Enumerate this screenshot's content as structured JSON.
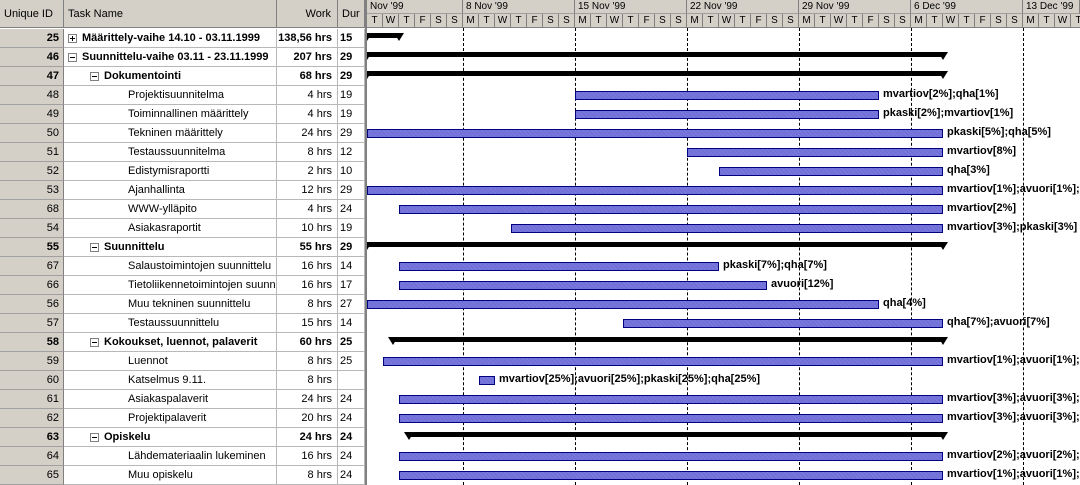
{
  "columns": {
    "id": "Unique ID",
    "name": "Task Name",
    "work": "Work",
    "duration": "Dur"
  },
  "timescale": {
    "weeks": [
      "Nov '99",
      "8 Nov '99",
      "15 Nov '99",
      "22 Nov '99",
      "29 Nov '99",
      "6 Dec '99",
      "13 Dec '99"
    ],
    "days": [
      "T",
      "W",
      "T",
      "F",
      "S",
      "S",
      "M",
      "T",
      "W",
      "T",
      "F",
      "S",
      "S",
      "M",
      "T",
      "W",
      "T",
      "F",
      "S",
      "S",
      "M",
      "T",
      "W",
      "T",
      "F",
      "S",
      "S",
      "M",
      "T",
      "W",
      "T",
      "F",
      "S",
      "S",
      "M",
      "T",
      "W",
      "T",
      "F",
      "S",
      "S",
      "M",
      "T",
      "W",
      "T"
    ]
  },
  "tasks": [
    {
      "id": "25",
      "name": "Määrittely-vaihe 14.10 - 03.11.1999",
      "work": "138,56 hrs",
      "dur": "15",
      "level": 0,
      "summary": true,
      "toggle": "+",
      "bar": {
        "kind": "summary",
        "start": 0,
        "end": 2
      },
      "label": ""
    },
    {
      "id": "46",
      "name": "Suunnittelu-vaihe 03.11 - 23.11.1999",
      "work": "207 hrs",
      "dur": "29",
      "level": 0,
      "summary": true,
      "toggle": "-",
      "bar": {
        "kind": "summary",
        "start": 0,
        "end": 36
      },
      "label": ""
    },
    {
      "id": "47",
      "name": "Dokumentointi",
      "work": "68 hrs",
      "dur": "29",
      "level": 1,
      "summary": true,
      "toggle": "-",
      "bar": {
        "kind": "summary",
        "start": 0,
        "end": 36
      },
      "label": ""
    },
    {
      "id": "48",
      "name": "Projektisuunnitelma",
      "work": "4 hrs",
      "dur": "19",
      "level": 2,
      "summary": false,
      "bar": {
        "kind": "task",
        "start": 13,
        "end": 32
      },
      "label": "mvartiov[2%];qha[1%]"
    },
    {
      "id": "49",
      "name": "Toiminnallinen määrittely",
      "work": "4 hrs",
      "dur": "19",
      "level": 2,
      "summary": false,
      "bar": {
        "kind": "task",
        "start": 13,
        "end": 32
      },
      "label": "pkaski[2%];mvartiov[1%]"
    },
    {
      "id": "50",
      "name": "Tekninen määrittely",
      "work": "24 hrs",
      "dur": "29",
      "level": 2,
      "summary": false,
      "bar": {
        "kind": "task",
        "start": 0,
        "end": 36
      },
      "label": "pkaski[5%];qha[5%]"
    },
    {
      "id": "51",
      "name": "Testaussuunnitelma",
      "work": "8 hrs",
      "dur": "12",
      "level": 2,
      "summary": false,
      "bar": {
        "kind": "task",
        "start": 20,
        "end": 36
      },
      "label": "mvartiov[8%]"
    },
    {
      "id": "52",
      "name": "Edistymisraportti",
      "work": "2 hrs",
      "dur": "10",
      "level": 2,
      "summary": false,
      "bar": {
        "kind": "task",
        "start": 22,
        "end": 36
      },
      "label": "qha[3%]"
    },
    {
      "id": "53",
      "name": "Ajanhallinta",
      "work": "12 hrs",
      "dur": "29",
      "level": 2,
      "summary": false,
      "bar": {
        "kind": "task",
        "start": 0,
        "end": 36
      },
      "label": "mvartiov[1%];avuori[1%];"
    },
    {
      "id": "68",
      "name": "WWW-ylläpito",
      "work": "4 hrs",
      "dur": "24",
      "level": 2,
      "summary": false,
      "bar": {
        "kind": "task",
        "start": 2,
        "end": 36
      },
      "label": "mvartiov[2%]"
    },
    {
      "id": "54",
      "name": "Asiakasraportit",
      "work": "10 hrs",
      "dur": "19",
      "level": 2,
      "summary": false,
      "bar": {
        "kind": "task",
        "start": 9,
        "end": 36
      },
      "label": "mvartiov[3%];pkaski[3%]"
    },
    {
      "id": "55",
      "name": "Suunnittelu",
      "work": "55 hrs",
      "dur": "29",
      "level": 1,
      "summary": true,
      "toggle": "-",
      "bar": {
        "kind": "summary",
        "start": 0,
        "end": 36
      },
      "label": ""
    },
    {
      "id": "67",
      "name": "Salaustoimintojen suunnittelu",
      "work": "16 hrs",
      "dur": "14",
      "level": 2,
      "summary": false,
      "bar": {
        "kind": "task",
        "start": 2,
        "end": 22
      },
      "label": "pkaski[7%];qha[7%]"
    },
    {
      "id": "66",
      "name": "Tietoliikennetoimintojen suunnit",
      "work": "16 hrs",
      "dur": "17",
      "level": 2,
      "summary": false,
      "bar": {
        "kind": "task",
        "start": 2,
        "end": 25
      },
      "label": "avuori[12%]"
    },
    {
      "id": "56",
      "name": "Muu tekninen suunnittelu",
      "work": "8 hrs",
      "dur": "27",
      "level": 2,
      "summary": false,
      "bar": {
        "kind": "task",
        "start": 0,
        "end": 32
      },
      "label": "qha[4%]"
    },
    {
      "id": "57",
      "name": "Testaussuunnittelu",
      "work": "15 hrs",
      "dur": "14",
      "level": 2,
      "summary": false,
      "bar": {
        "kind": "task",
        "start": 16,
        "end": 36
      },
      "label": "qha[7%];avuori[7%]"
    },
    {
      "id": "58",
      "name": "Kokoukset, luennot, palaverit",
      "work": "60 hrs",
      "dur": "25",
      "level": 1,
      "summary": true,
      "toggle": "-",
      "bar": {
        "kind": "summary",
        "start": 1,
        "end": 36
      },
      "label": ""
    },
    {
      "id": "59",
      "name": "Luennot",
      "work": "8 hrs",
      "dur": "25",
      "level": 2,
      "summary": false,
      "bar": {
        "kind": "task",
        "start": 1,
        "end": 36
      },
      "label": "mvartiov[1%];avuori[1%];"
    },
    {
      "id": "60",
      "name": "Katselmus 9.11.",
      "work": "8 hrs",
      "dur": "",
      "level": 2,
      "summary": false,
      "bar": {
        "kind": "task",
        "start": 7,
        "end": 8
      },
      "label": "mvartiov[25%];avuori[25%];pkaski[25%];qha[25%]"
    },
    {
      "id": "61",
      "name": "Asiakaspalaverit",
      "work": "24 hrs",
      "dur": "24",
      "level": 2,
      "summary": false,
      "bar": {
        "kind": "task",
        "start": 2,
        "end": 36
      },
      "label": "mvartiov[3%];avuori[3%];"
    },
    {
      "id": "62",
      "name": "Projektipalaverit",
      "work": "20 hrs",
      "dur": "24",
      "level": 2,
      "summary": false,
      "bar": {
        "kind": "task",
        "start": 2,
        "end": 36
      },
      "label": "mvartiov[3%];avuori[3%];"
    },
    {
      "id": "63",
      "name": "Opiskelu",
      "work": "24 hrs",
      "dur": "24",
      "level": 1,
      "summary": true,
      "toggle": "-",
      "bar": {
        "kind": "summary",
        "start": 2,
        "end": 36
      },
      "label": ""
    },
    {
      "id": "64",
      "name": "Lähdemateriaalin lukeminen",
      "work": "16 hrs",
      "dur": "24",
      "level": 2,
      "summary": false,
      "bar": {
        "kind": "task",
        "start": 2,
        "end": 36
      },
      "label": "mvartiov[2%];avuori[2%];"
    },
    {
      "id": "65",
      "name": "Muu opiskelu",
      "work": "8 hrs",
      "dur": "24",
      "level": 2,
      "summary": false,
      "bar": {
        "kind": "task",
        "start": 2,
        "end": 36
      },
      "label": "mvartiov[1%];avuori[1%];"
    }
  ],
  "colors": {
    "task_bar": "#7070d8",
    "task_border": "#000080",
    "summary": "#000000",
    "header": "#d4d0c8"
  }
}
